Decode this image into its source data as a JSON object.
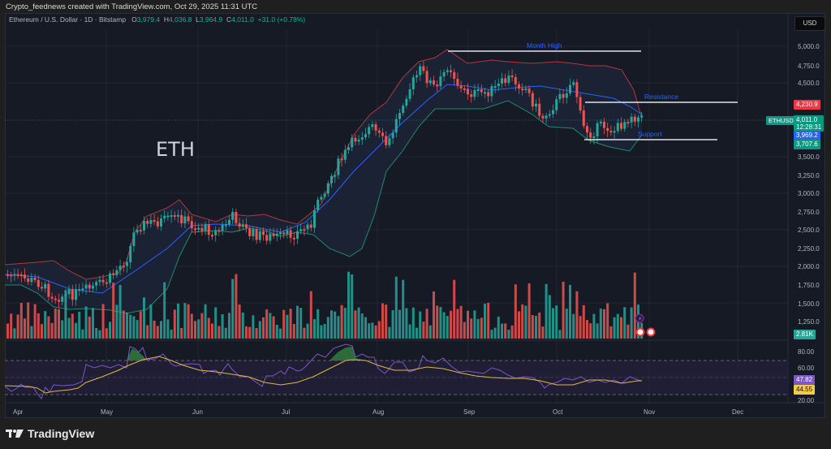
{
  "caption": "Crypto_feednews created with TradingView.com, Oct 29, 2025 11:31 UTC",
  "legend": {
    "symbol": "Ethereum / U.S. Dollar · 1D · Bitstamp",
    "open_label": "O",
    "open": "3,979.4",
    "high_label": "H",
    "high": "4,036.8",
    "low_label": "L",
    "low": "3,964.9",
    "close_label": "C",
    "close": "4,011.0",
    "change": "+31.0 (+0.78%)"
  },
  "currency_button": "USD",
  "watermark": "ETH",
  "annotations": {
    "month_high": "Month High",
    "resistance": "Resistance",
    "support": "Support"
  },
  "price_axis": {
    "labels": [
      "5,000.0",
      "4,750.0",
      "4,500.0",
      "3,500.0",
      "3,250.0",
      "3,000.0",
      "2,750.0",
      "2,500.0",
      "2,250.0",
      "2,000.0",
      "1,750.0",
      "1,500.0",
      "1,250.0"
    ],
    "tags": {
      "resistance": "4,230.9",
      "symbol": "ETHUSD",
      "last_price": "4,011.0",
      "countdown": "12:28:31",
      "bb_basis": "3,969.2",
      "bb_lower": "3,707.6",
      "volume": "2.81K"
    }
  },
  "rsi_axis": {
    "labels": [
      "80.00",
      "60.00",
      "20.00"
    ],
    "rsi": "47.82",
    "rsi_ma": "44.55"
  },
  "time_axis": [
    "Apr",
    "May",
    "Jun",
    "Jul",
    "Aug",
    "Sep",
    "Oct",
    "Nov",
    "Dec"
  ],
  "brand": "TradingView",
  "colors": {
    "up": "#26a69a",
    "down": "#ef5350",
    "bb_upper": "#b2363f",
    "bb_lower": "#1f8a6e",
    "bb_basis": "#2962ff",
    "rsi": "#7e57c2",
    "rsi_ma": "#e0b83a",
    "bg": "#161a25"
  }
}
